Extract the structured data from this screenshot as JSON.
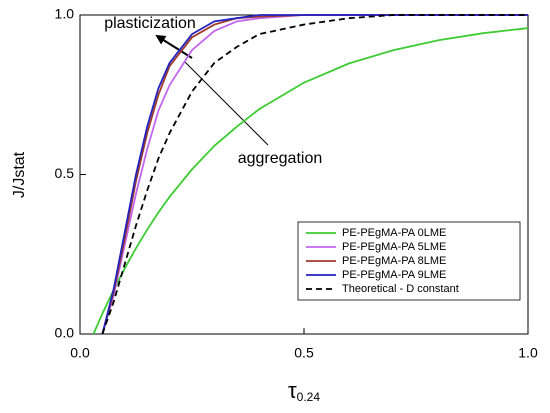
{
  "chart_data": {
    "type": "line",
    "x_label": {
      "main": "τ",
      "subscript": "0.24"
    },
    "y_label": "J/Jstat",
    "x": [
      0.03,
      0.05,
      0.075,
      0.1,
      0.125,
      0.15,
      0.175,
      0.2,
      0.25,
      0.3,
      0.35,
      0.4,
      0.5,
      0.6,
      0.7,
      0.8,
      0.9,
      1.0
    ],
    "series": [
      {
        "name": "PE-PEgMA-PA 0LME",
        "color": "#3dcc33",
        "dash": false,
        "values": [
          0,
          0.064,
          0.138,
          0.206,
          0.269,
          0.327,
          0.381,
          0.43,
          0.516,
          0.59,
          0.65,
          0.705,
          0.788,
          0.848,
          0.89,
          0.921,
          0.943,
          0.959
        ]
      },
      {
        "name": "PE-PEgMA-PA 5LME",
        "color": "#c266f0",
        "dash": false,
        "values": [
          null,
          0,
          0.12,
          0.28,
          0.44,
          0.58,
          0.7,
          0.78,
          0.89,
          0.95,
          0.98,
          0.99,
          1,
          1,
          1,
          1,
          1,
          1
        ]
      },
      {
        "name": "PE-PEgMA-PA 8LME",
        "color": "#a03a2c",
        "dash": false,
        "values": [
          null,
          0,
          0.13,
          0.3,
          0.48,
          0.63,
          0.75,
          0.84,
          0.93,
          0.97,
          0.99,
          0.995,
          1,
          1,
          1,
          1,
          1,
          1
        ]
      },
      {
        "name": "PE-PEgMA-PA 9LME",
        "color": "#2323c0",
        "dash": false,
        "values": [
          null,
          0,
          0.14,
          0.32,
          0.5,
          0.65,
          0.77,
          0.85,
          0.94,
          0.98,
          0.99,
          1,
          1,
          1,
          1,
          1,
          1,
          1
        ]
      },
      {
        "name": "Theoretical - D constant",
        "color": "#000000",
        "dash": true,
        "values": [
          null,
          0,
          0.1,
          0.22,
          0.34,
          0.45,
          0.55,
          0.63,
          0.76,
          0.85,
          0.9,
          0.94,
          0.97,
          0.99,
          1,
          1,
          1,
          1
        ]
      }
    ],
    "xlim": [
      0,
      1
    ],
    "ylim": [
      0,
      1
    ],
    "xticks": [
      {
        "value": 0,
        "label": "0.0"
      },
      {
        "value": 0.5,
        "label": "0.5"
      },
      {
        "value": 1,
        "label": "1.0"
      }
    ],
    "yticks": [
      {
        "value": 0,
        "label": "0.0"
      },
      {
        "value": 0.5,
        "label": "0.5"
      },
      {
        "value": 1,
        "label": "1.0"
      }
    ],
    "legend": "lower right",
    "annotations": [
      "plasticization",
      "aggregation"
    ]
  }
}
